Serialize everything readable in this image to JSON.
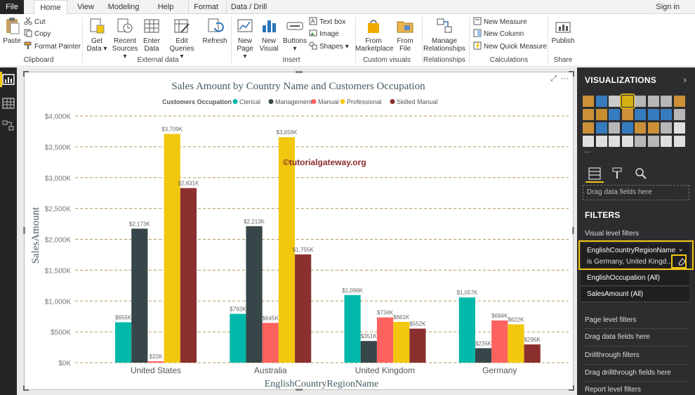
{
  "tabs": [
    {
      "label": "File",
      "left": 0,
      "width": 34
    },
    {
      "label": "Home",
      "left": 48,
      "width": 48
    },
    {
      "label": "View",
      "left": 104,
      "width": 36
    },
    {
      "label": "Modeling",
      "left": 146,
      "width": 60
    },
    {
      "label": "Help",
      "left": 216,
      "width": 40
    },
    {
      "label": "Format",
      "left": 268,
      "width": 50
    },
    {
      "label": "Data / Drill",
      "left": 322,
      "width": 64
    }
  ],
  "signin": "Sign in",
  "ribbon": {
    "paste": "Paste",
    "cut": "Cut",
    "copy": "Copy",
    "format_painter": "Format Painter",
    "clipboard": "Clipboard",
    "get_data": "Get\nData",
    "recent_sources": "Recent\nSources",
    "enter_data": "Enter\nData",
    "edit_queries": "Edit\nQueries",
    "refresh": "Refresh",
    "external_data": "External data",
    "new_page": "New\nPage",
    "new_visual": "New\nVisual",
    "buttons": "Buttons",
    "text_box": "Text box",
    "image": "Image",
    "shapes": "Shapes",
    "insert": "Insert",
    "from_marketplace": "From\nMarketplace",
    "from_file": "From\nFile",
    "custom_visuals": "Custom visuals",
    "manage_relationships": "Manage\nRelationships",
    "relationships": "Relationships",
    "new_measure": "New Measure",
    "new_column": "New Column",
    "new_quick_measure": "New Quick Measure",
    "calculations": "Calculations",
    "publish": "Publish",
    "share": "Share"
  },
  "pane": {
    "visualizations": "VISUALIZATIONS",
    "more": "...",
    "drag_fields": "Drag data fields here",
    "filters": "FILTERS",
    "visual_level": "Visual level filters",
    "filter1_name": "EnglishCountryRegionName",
    "filter1_value": "is Germany, United Kingd...",
    "filter2": "EnglishOccupation (All)",
    "filter3": "SalesAmount (All)",
    "page_level": "Page level filters",
    "drag_here_page": "Drag data fields here",
    "drillthrough": "Drillthrough filters",
    "drag_drillthrough": "Drag drillthrough fields here",
    "report_level": "Report level filters"
  },
  "watermark": "©tutorialgateway.org",
  "chart_data": {
    "type": "bar",
    "title": "Sales Amount by Country Name and Customers Occupation",
    "xlabel": "EnglishCountryRegionName",
    "ylabel": "SalesAmount",
    "legend_title": "Customers Occupation",
    "legend_position": "top-left",
    "ylim": [
      0,
      4000
    ],
    "yticks": [
      0,
      500,
      1000,
      1500,
      2000,
      2500,
      3000,
      3500,
      4000
    ],
    "unit_suffix": "K",
    "grid": true,
    "categories": [
      "United States",
      "Australia",
      "United Kingdom",
      "Germany"
    ],
    "series": [
      {
        "name": "Clerical",
        "color": "#01b8aa",
        "values": [
          655,
          792,
          1096,
          1057
        ],
        "labels": [
          "$655K",
          "$792K",
          "$1,096K",
          "$1,057K"
        ]
      },
      {
        "name": "Management",
        "color": "#374649",
        "values": [
          2173,
          2213,
          351,
          235
        ],
        "labels": [
          "$2,173K",
          "$2,213K",
          "$351K",
          "$235K"
        ]
      },
      {
        "name": "Manual",
        "color": "#fd625e",
        "values": [
          22,
          645,
          734,
          684
        ],
        "labels": [
          "$22K",
          "$645K",
          "$734K",
          "$684K"
        ]
      },
      {
        "name": "Professional",
        "color": "#f2c80f",
        "values": [
          3709,
          3656,
          661,
          622
        ],
        "labels": [
          "$3,709K",
          "$3,656K",
          "$661K",
          "$622K"
        ]
      },
      {
        "name": "Skilled Manual",
        "color": "#8b302f",
        "values": [
          2831,
          1755,
          552,
          296
        ],
        "labels": [
          "$2,831K",
          "$1,755K",
          "$552K",
          "$296K"
        ]
      }
    ]
  }
}
